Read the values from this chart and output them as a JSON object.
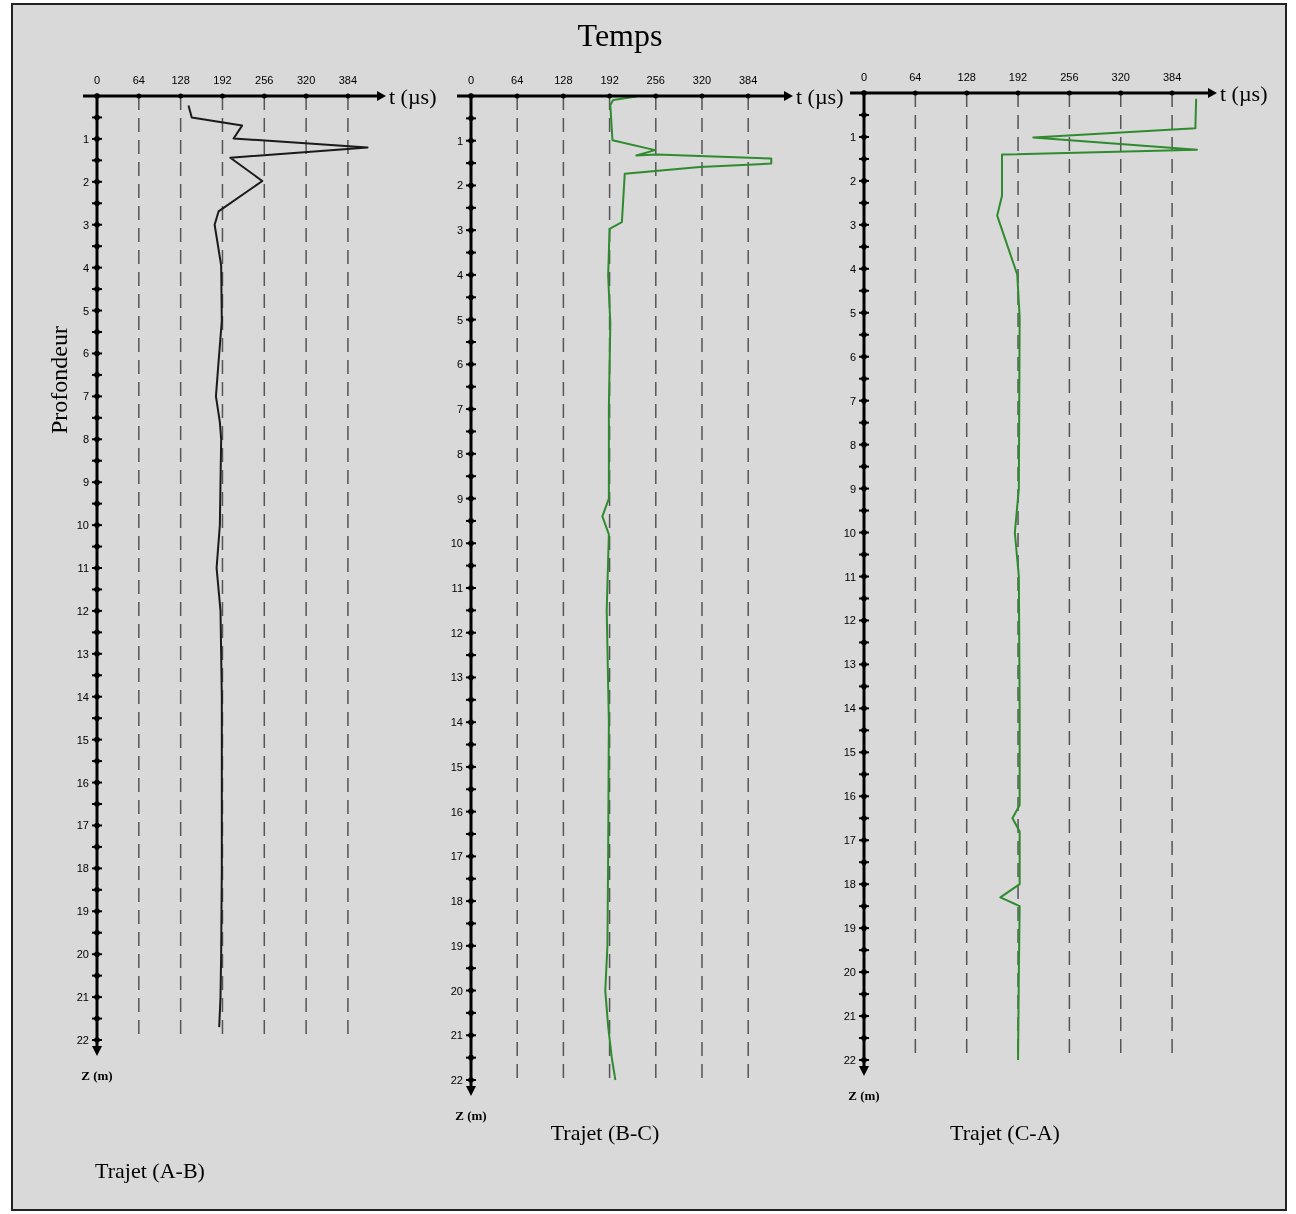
{
  "chart_data": [
    {
      "type": "line",
      "subtitle": "Trajet (A-B)",
      "xlabel": "t (µs)",
      "ylabel": "Z (m)",
      "annotations": [
        "Profondeur"
      ],
      "grid": "x",
      "xlim": [
        0,
        430
      ],
      "ylim": [
        22,
        0
      ],
      "xticks": [
        0,
        64,
        128,
        192,
        256,
        320,
        384
      ],
      "yticks": [
        {
          "value": 0,
          "label": null
        },
        {
          "value": 0.5,
          "label": null
        },
        1,
        {
          "value": 1.5,
          "label": null
        },
        2,
        {
          "value": 2.5,
          "label": null
        },
        3,
        {
          "value": 3.5,
          "label": null
        },
        4,
        {
          "value": 4.5,
          "label": null
        },
        5,
        {
          "value": 5.5,
          "label": null
        },
        6,
        {
          "value": 6.5,
          "label": null
        },
        7,
        {
          "value": 7.5,
          "label": null
        },
        8,
        {
          "value": 8.5,
          "label": null
        },
        9,
        {
          "value": 9.5,
          "label": null
        },
        10,
        {
          "value": 10.5,
          "label": null
        },
        11,
        {
          "value": 11.5,
          "label": null
        },
        12,
        {
          "value": 12.5,
          "label": null
        },
        13,
        {
          "value": 13.5,
          "label": null
        },
        14,
        {
          "value": 14.5,
          "label": null
        },
        15,
        {
          "value": 15.5,
          "label": null
        },
        16,
        {
          "value": 16.5,
          "label": null
        },
        17,
        {
          "value": 17.5,
          "label": null
        },
        18,
        {
          "value": 18.5,
          "label": null
        },
        19,
        {
          "value": 19.5,
          "label": null
        },
        20,
        {
          "value": 20.5,
          "label": null
        },
        21,
        {
          "value": 21.5,
          "label": null
        },
        22
      ],
      "series": [
        {
          "color": "#1a1a1a",
          "x": [
            140,
            145,
            222,
            209,
            414,
            204,
            253,
            186,
            180,
            190,
            191,
            186,
            182,
            188,
            190,
            189,
            188,
            183,
            189,
            191,
            191,
            191,
            190,
            189,
            187
          ],
          "values": [
            0.22,
            0.5,
            0.69,
            0.99,
            1.2,
            1.44,
            1.98,
            2.69,
            3.0,
            3.95,
            5.24,
            6.2,
            7.0,
            7.6,
            8.0,
            9.0,
            10.0,
            11.0,
            12.0,
            14.0,
            16.0,
            18.0,
            20.0,
            21.0,
            21.7
          ]
        }
      ]
    },
    {
      "type": "line",
      "title": "Temps",
      "subtitle": "Trajet (B-C)",
      "xlabel": "t (µs)",
      "ylabel": "Z (m)",
      "grid": "x",
      "xlim": [
        0,
        435
      ],
      "ylim": [
        22,
        0
      ],
      "xticks": [
        0,
        64,
        128,
        192,
        256,
        320,
        384
      ],
      "yticks": [
        {
          "value": 0,
          "label": null
        },
        {
          "value": 0.5,
          "label": null
        },
        1,
        {
          "value": 1.5,
          "label": null
        },
        2,
        {
          "value": 2.5,
          "label": null
        },
        3,
        {
          "value": 3.5,
          "label": null
        },
        4,
        {
          "value": 4.5,
          "label": null
        },
        5,
        {
          "value": 5.5,
          "label": null
        },
        6,
        {
          "value": 6.5,
          "label": null
        },
        7,
        {
          "value": 7.5,
          "label": null
        },
        8,
        {
          "value": 8.5,
          "label": null
        },
        9,
        {
          "value": 9.5,
          "label": null
        },
        10,
        {
          "value": 10.5,
          "label": null
        },
        11,
        {
          "value": 11.5,
          "label": null
        },
        12,
        {
          "value": 12.5,
          "label": null
        },
        13,
        {
          "value": 13.5,
          "label": null
        },
        14,
        {
          "value": 14.5,
          "label": null
        },
        15,
        {
          "value": 15.5,
          "label": null
        },
        16,
        {
          "value": 16.5,
          "label": null
        },
        17,
        {
          "value": 17.5,
          "label": null
        },
        18,
        {
          "value": 18.5,
          "label": null
        },
        19,
        {
          "value": 19.5,
          "label": null
        },
        20,
        {
          "value": 20.5,
          "label": null
        },
        21,
        {
          "value": 21.5,
          "label": null
        },
        22
      ],
      "series": [
        {
          "color": "#2e8b2e",
          "x": [
            229,
            197,
            193,
            196,
            255,
            229,
            257,
            416,
            416,
            317,
            213,
            209,
            192,
            190,
            193,
            191,
            191,
            182,
            191,
            188,
            191,
            190,
            189,
            186,
            190,
            195,
            200
          ],
          "values": [
            0.01,
            0.09,
            0.2,
            0.99,
            1.21,
            1.33,
            1.31,
            1.4,
            1.51,
            1.59,
            1.74,
            2.82,
            2.97,
            4.02,
            5.07,
            7.0,
            9.0,
            9.4,
            9.8,
            11.5,
            14.0,
            17.0,
            19.0,
            20.0,
            20.8,
            21.5,
            22.0
          ]
        }
      ]
    },
    {
      "type": "line",
      "subtitle": "Trajet (C-A)",
      "xlabel": "t (µs)",
      "ylabel": "Z (m)",
      "grid": "x",
      "xlim": [
        0,
        430
      ],
      "ylim": [
        22,
        0
      ],
      "xticks": [
        0,
        64,
        128,
        192,
        256,
        320,
        384
      ],
      "yticks": [
        {
          "value": 0,
          "label": null
        },
        {
          "value": 0.5,
          "label": null
        },
        1,
        {
          "value": 1.5,
          "label": null
        },
        2,
        {
          "value": 2.5,
          "label": null
        },
        3,
        {
          "value": 3.5,
          "label": null
        },
        4,
        {
          "value": 4.5,
          "label": null
        },
        5,
        {
          "value": 5.5,
          "label": null
        },
        6,
        {
          "value": 6.5,
          "label": null
        },
        7,
        {
          "value": 7.5,
          "label": null
        },
        8,
        {
          "value": 8.5,
          "label": null
        },
        9,
        {
          "value": 9.5,
          "label": null
        },
        10,
        {
          "value": 10.5,
          "label": null
        },
        11,
        {
          "value": 11.5,
          "label": null
        },
        12,
        {
          "value": 12.5,
          "label": null
        },
        13,
        {
          "value": 13.5,
          "label": null
        },
        14,
        {
          "value": 14.5,
          "label": null
        },
        15,
        {
          "value": 15.5,
          "label": null
        },
        16,
        {
          "value": 16.5,
          "label": null
        },
        17,
        {
          "value": 17.5,
          "label": null
        },
        18,
        {
          "value": 18.5,
          "label": null
        },
        19,
        {
          "value": 19.5,
          "label": null
        },
        20,
        {
          "value": 20.5,
          "label": null
        },
        21,
        {
          "value": 21.5,
          "label": null
        },
        22
      ],
      "series": [
        {
          "color": "#2e8b2e",
          "x": [
            414,
            413,
            211,
            415,
            172,
            172,
            166,
            191,
            194,
            193,
            188,
            193,
            194,
            194,
            185,
            194,
            194,
            170,
            194,
            193,
            192
          ],
          "values": [
            0.13,
            0.8,
            1.01,
            1.29,
            1.4,
            2.34,
            2.79,
            4.13,
            5.1,
            9.0,
            10.0,
            11.0,
            14.0,
            16.2,
            16.5,
            16.8,
            18.0,
            18.3,
            18.5,
            20.0,
            22.0
          ]
        }
      ]
    }
  ]
}
